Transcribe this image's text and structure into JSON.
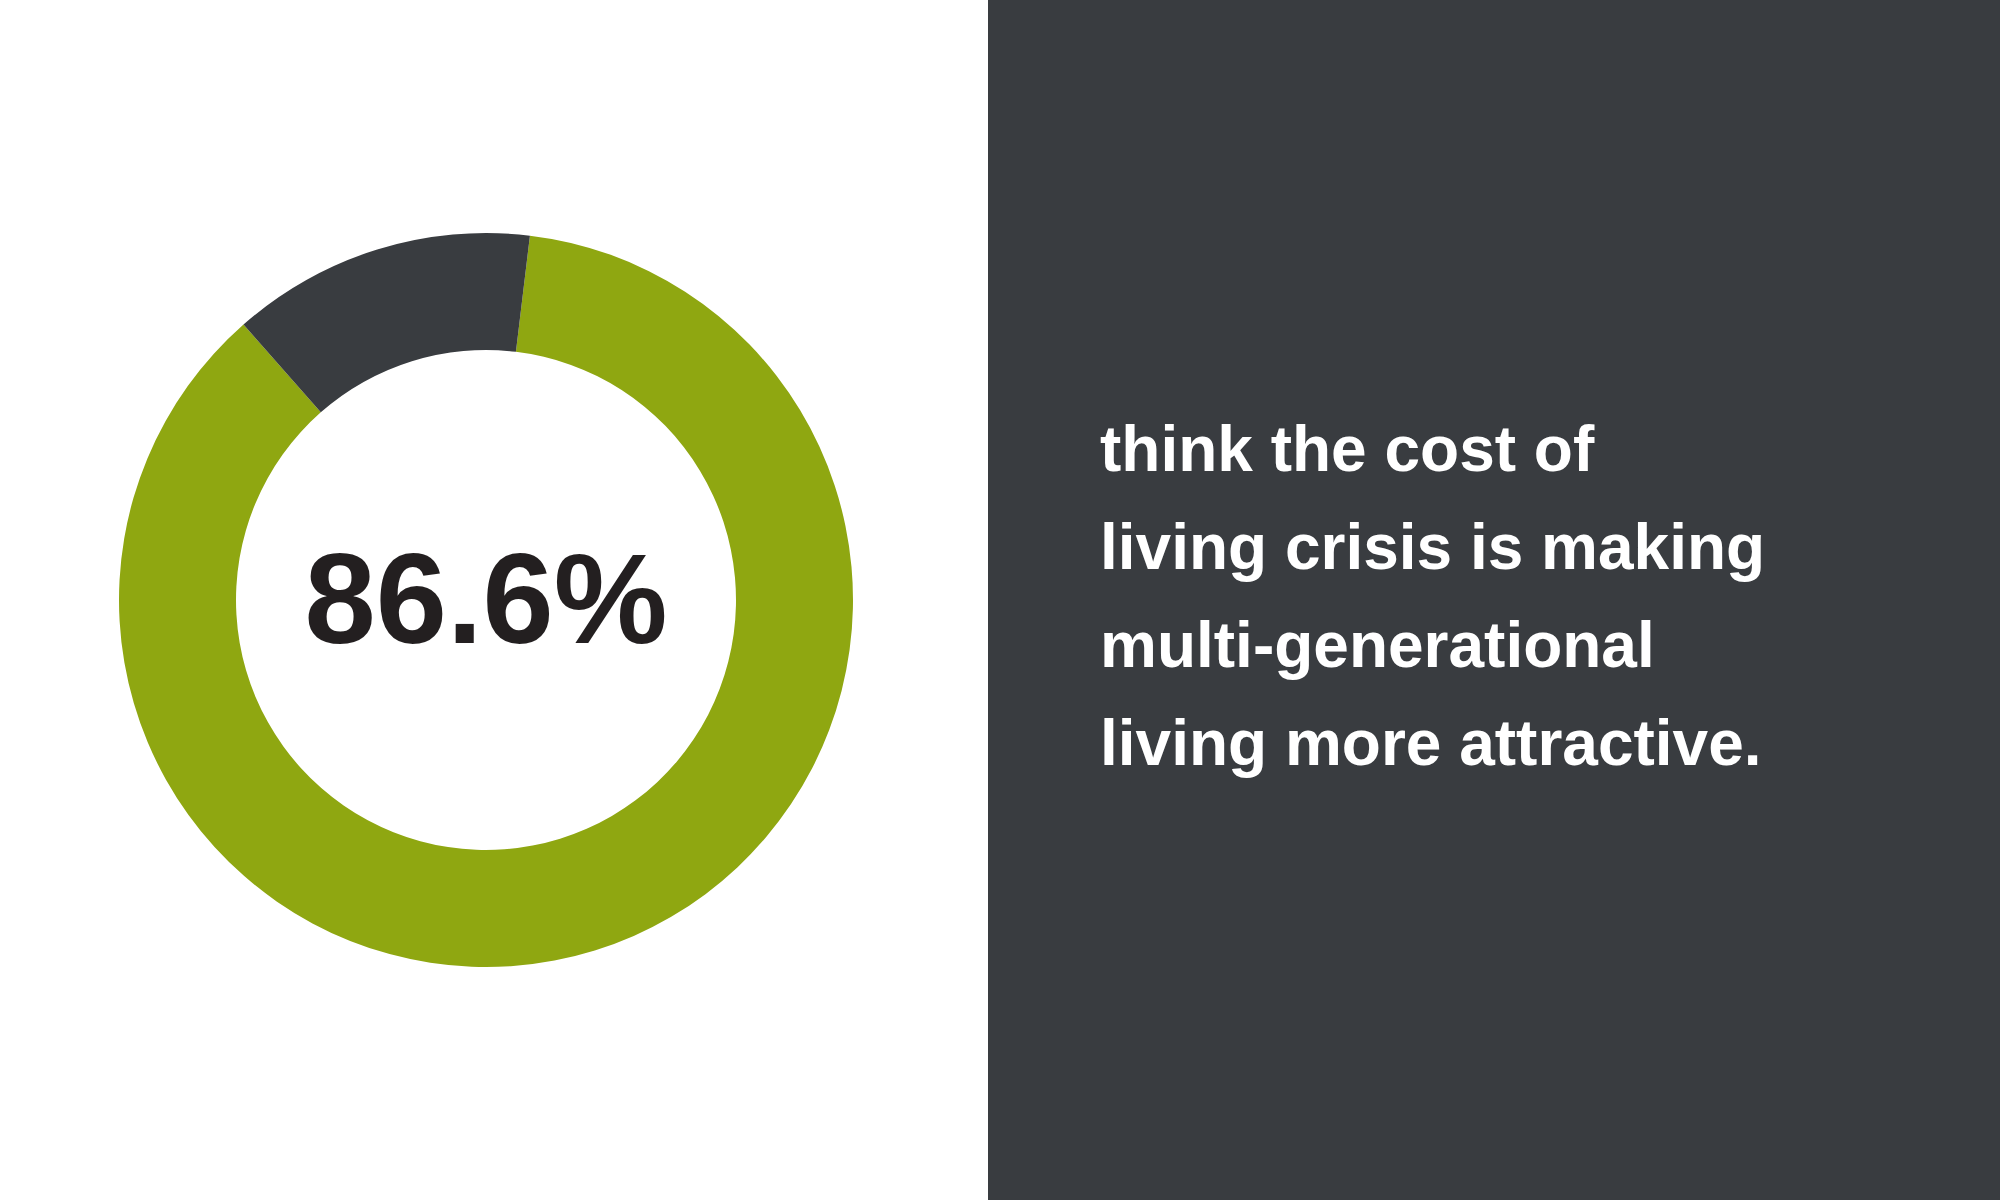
{
  "chart_data": {
    "type": "donut",
    "title": "think the cost of living crisis is making multi-generational living more attractive.",
    "categories": [
      null,
      null
    ],
    "values": [
      86.6,
      13.4
    ],
    "colors": [
      "#8fa711",
      "#393c40"
    ],
    "value_labels": [
      "86.6%",
      null
    ],
    "legend": false
  }
}
